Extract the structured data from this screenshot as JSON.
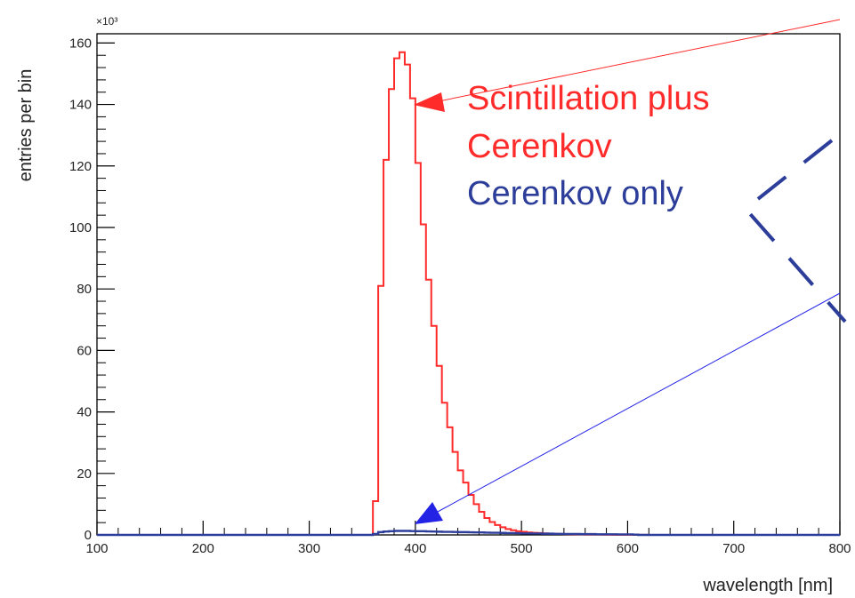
{
  "chart_data": {
    "type": "histogram",
    "xlabel": "wavelength [nm]",
    "ylabel": "entries per bin",
    "y_exponent_label": "×10³",
    "xlim": [
      100,
      800
    ],
    "ylim": [
      0,
      163
    ],
    "x_ticks": [
      100,
      200,
      300,
      400,
      500,
      600,
      700,
      800
    ],
    "y_ticks": [
      0,
      20,
      40,
      60,
      80,
      100,
      120,
      140,
      160
    ],
    "bin_width": 5,
    "grid": false,
    "series": [
      {
        "name": "Scintillation plus Cerenkov",
        "color": "#ff2a2a",
        "bin_edges_start": 360,
        "values": [
          11,
          81,
          122,
          145,
          155,
          157,
          153,
          142,
          121,
          101,
          83,
          68,
          55,
          43,
          35,
          27,
          21,
          17,
          13,
          10,
          7.5,
          5.5,
          4.2,
          3.2,
          2.5,
          1.9,
          1.5,
          1.2,
          1.0,
          0.8,
          0.7,
          0.6,
          0.5,
          0.4,
          0.35,
          0.3,
          0.25,
          0.2,
          0.18,
          0.15,
          0.12,
          0.1,
          0.1,
          0.08,
          0.06,
          0.05,
          0.05,
          0.04,
          0.03,
          0.02,
          0.02,
          0.02,
          0.01
        ]
      },
      {
        "name": "Cerenkov only",
        "color": "#2c3d9a",
        "bin_edges_start": 360,
        "values": [
          0.3,
          0.9,
          1.1,
          1.2,
          1.3,
          1.3,
          1.3,
          1.25,
          1.2,
          1.2,
          1.15,
          1.1,
          1.05,
          1.0,
          1.0,
          0.95,
          0.9,
          0.9,
          0.85,
          0.8,
          0.8,
          0.75,
          0.7,
          0.7,
          0.65,
          0.6,
          0.6,
          0.55,
          0.5,
          0.5,
          0.45,
          0.45,
          0.4,
          0.4,
          0.35,
          0.35,
          0.3,
          0.3,
          0.3,
          0.25,
          0.25,
          0.25,
          0.2,
          0.2,
          0.2,
          0.2,
          0.15,
          0.15,
          0.15,
          0.1
        ]
      }
    ]
  },
  "legend": {
    "line1": "Scintillation plus",
    "line2": "Cerenkov",
    "line3": "Cerenkov only",
    "red_color": "#ff2a2a",
    "blue_color": "#2c3d9a"
  }
}
